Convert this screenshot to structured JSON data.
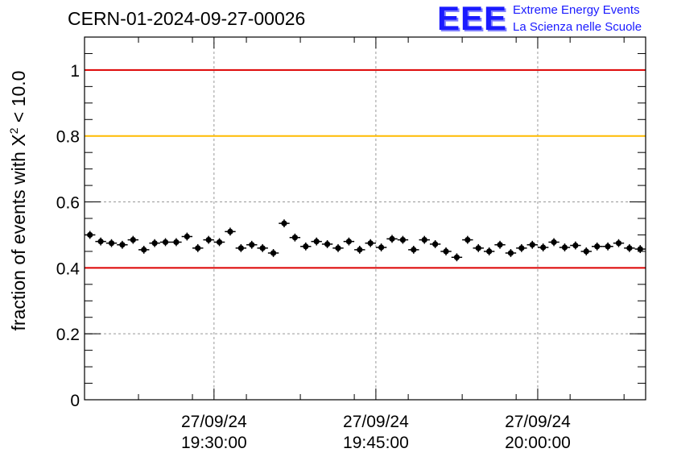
{
  "chart_title": "CERN-01-2024-09-27-00026",
  "logo": {
    "mark": "EEE",
    "line1": "Extreme Energy Events",
    "line2": "La Scienza nelle Scuole",
    "color": "#1a1aff"
  },
  "colors": {
    "threshold_red": "#dd0000",
    "threshold_orange": "#ffbb00",
    "markers": "#000000",
    "grid": "#999999"
  },
  "chart_data": {
    "type": "scatter",
    "title": "CERN-01-2024-09-27-00026",
    "ylabel_prefix": "fraction of events with ",
    "ylabel_symbol": "X",
    "ylabel_sup": "2",
    "ylabel_suffix": " < 10.0",
    "xlabel": "",
    "ylim": [
      0,
      1.1
    ],
    "x_time_range": [
      "2024-09-27 19:18:00",
      "2024-09-27 20:10:00"
    ],
    "x_ticks": [
      {
        "time": "2024-09-27 19:30:00",
        "date": "27/09/24",
        "clock": "19:30:00"
      },
      {
        "time": "2024-09-27 19:45:00",
        "date": "27/09/24",
        "clock": "19:45:00"
      },
      {
        "time": "2024-09-27 20:00:00",
        "date": "27/09/24",
        "clock": "20:00:00"
      }
    ],
    "y_ticks": [
      "0",
      "0.2",
      "0.4",
      "0.6",
      "0.8",
      "1"
    ],
    "grid": true,
    "reference_lines": [
      {
        "y": 1.0,
        "color": "red"
      },
      {
        "y": 0.8,
        "color": "orange"
      },
      {
        "y": 0.4,
        "color": "red"
      }
    ],
    "series": [
      {
        "x_start": "2024-09-27 19:18:30",
        "x_step_seconds": 60,
        "y_error": 0.012,
        "values": [
          0.5,
          0.48,
          0.475,
          0.47,
          0.485,
          0.455,
          0.475,
          0.478,
          0.478,
          0.495,
          0.46,
          0.485,
          0.478,
          0.51,
          0.46,
          0.47,
          0.46,
          0.445,
          0.535,
          0.492,
          0.465,
          0.48,
          0.472,
          0.46,
          0.48,
          0.455,
          0.475,
          0.462,
          0.488,
          0.485,
          0.455,
          0.485,
          0.472,
          0.45,
          0.432,
          0.485,
          0.46,
          0.45,
          0.47,
          0.445,
          0.46,
          0.47,
          0.462,
          0.478,
          0.462,
          0.468,
          0.45,
          0.465,
          0.465,
          0.475,
          0.46,
          0.457
        ]
      }
    ]
  }
}
